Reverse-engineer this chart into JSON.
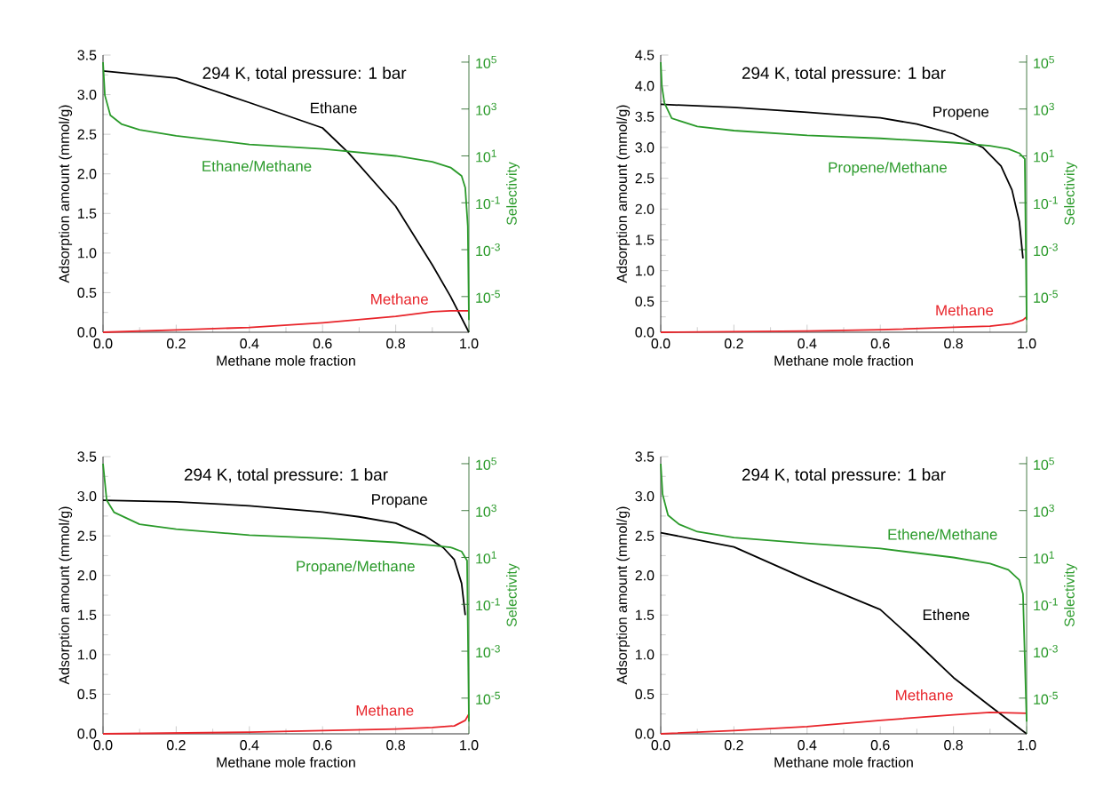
{
  "chart_data": [
    {
      "type": "line",
      "title": "294 K, total pressure: 1 bar",
      "xlabel": "Methane mole fraction",
      "ylabel": "Adsorption amount (mmol/g)",
      "y2label": "Selectivity",
      "log": "y2",
      "marker": "none",
      "line_style": "solid",
      "legend": false,
      "grid": false,
      "xlim": [
        0,
        1
      ],
      "xticks": [
        {
          "value": 0,
          "label": "0.0"
        },
        {
          "value": 0.2,
          "label": "0.2"
        },
        {
          "value": 0.4,
          "label": "0.4"
        },
        {
          "value": 0.6,
          "label": "0.6"
        },
        {
          "value": 0.8,
          "label": "0.8"
        },
        {
          "value": 1,
          "label": "1.0"
        }
      ],
      "ylim": [
        0,
        3.5
      ],
      "yticks": [
        {
          "value": 0,
          "label": "0.0"
        },
        {
          "value": 0.5,
          "label": "0.5"
        },
        {
          "value": 1,
          "label": "1.0"
        },
        {
          "value": 1.5,
          "label": "1.5"
        },
        {
          "value": 2,
          "label": "2.0"
        },
        {
          "value": 2.5,
          "label": "2.5"
        },
        {
          "value": 3,
          "label": "3.0"
        },
        {
          "value": 3.5,
          "label": "3.5"
        }
      ],
      "y2lim": [
        3e-07,
        200000
      ],
      "y2ticks": [
        {
          "value": 1e-05,
          "label": "10$^{-5}$"
        },
        {
          "value": 0.001,
          "label": "10$^{-3}$"
        },
        {
          "value": 0.1,
          "label": "10$^{-1}$"
        },
        {
          "value": 10,
          "label": "10$^{1}$"
        },
        {
          "value": 1000,
          "label": "10$^{3}$"
        },
        {
          "value": 100000,
          "label": "10$^{5}$"
        }
      ],
      "series": [
        {
          "name": "Ethane",
          "color": "#000000",
          "x": [
            0,
            0.2,
            0.4,
            0.6,
            0.67,
            0.8,
            0.9,
            0.95,
            1.0
          ],
          "values": [
            3.3,
            3.21,
            2.9,
            2.58,
            2.27,
            1.59,
            0.85,
            0.45,
            0.0
          ]
        },
        {
          "name": "Methane",
          "color": "#e8242a",
          "x": [
            0,
            0.2,
            0.4,
            0.6,
            0.8,
            0.9,
            0.95,
            1.0
          ],
          "values": [
            0,
            0.03,
            0.06,
            0.12,
            0.2,
            0.26,
            0.27,
            0.27
          ]
        },
        {
          "name": "Ethane/Methane",
          "color": "#2a9a2a",
          "axis": "y2",
          "x": [
            0,
            0.005,
            0.02,
            0.05,
            0.1,
            0.2,
            0.4,
            0.6,
            0.8,
            0.9,
            0.95,
            0.98,
            0.99,
            0.997,
            1.0
          ],
          "values": [
            100000,
            3900,
            540,
            230,
            130,
            72,
            31,
            20,
            10,
            5.6,
            3.2,
            1.4,
            0.44,
            0.01,
            1e-06
          ]
        }
      ]
    },
    {
      "type": "line",
      "title": "294 K, total pressure: 1 bar",
      "xlabel": "Methane mole fraction",
      "ylabel": "Adsorption amount (mmol/g)",
      "y2label": "Selectivity",
      "log": "y2",
      "marker": "none",
      "line_style": "solid",
      "legend": false,
      "grid": false,
      "xlim": [
        0,
        1
      ],
      "xticks": [
        {
          "value": 0,
          "label": "0.0"
        },
        {
          "value": 0.2,
          "label": "0.2"
        },
        {
          "value": 0.4,
          "label": "0.4"
        },
        {
          "value": 0.6,
          "label": "0.6"
        },
        {
          "value": 0.8,
          "label": "0.8"
        },
        {
          "value": 1,
          "label": "1.0"
        }
      ],
      "ylim": [
        0,
        4.5
      ],
      "yticks": [
        {
          "value": 0,
          "label": "0.0"
        },
        {
          "value": 0.5,
          "label": "0.5"
        },
        {
          "value": 1,
          "label": "1.0"
        },
        {
          "value": 1.5,
          "label": "1.5"
        },
        {
          "value": 2,
          "label": "2.0"
        },
        {
          "value": 2.5,
          "label": "2.5"
        },
        {
          "value": 3,
          "label": "3.0"
        },
        {
          "value": 3.5,
          "label": "3.5"
        },
        {
          "value": 4,
          "label": "4.0"
        },
        {
          "value": 4.5,
          "label": "4.5"
        }
      ],
      "y2lim": [
        3e-07,
        200000
      ],
      "y2ticks": [
        {
          "value": 1e-05,
          "label": "10$^{-5}$"
        },
        {
          "value": 0.001,
          "label": "10$^{-3}$"
        },
        {
          "value": 0.1,
          "label": "10$^{-1}$"
        },
        {
          "value": 10,
          "label": "10$^{1}$"
        },
        {
          "value": 1000,
          "label": "10$^{3}$"
        },
        {
          "value": 100000,
          "label": "10$^{5}$"
        }
      ],
      "series": [
        {
          "name": "Propene",
          "color": "#000000",
          "x": [
            0,
            0.2,
            0.4,
            0.6,
            0.7,
            0.8,
            0.88,
            0.93,
            0.96,
            0.98,
            0.99
          ],
          "values": [
            3.7,
            3.65,
            3.57,
            3.48,
            3.38,
            3.22,
            3.0,
            2.7,
            2.31,
            1.8,
            1.2
          ]
        },
        {
          "name": "Methane",
          "color": "#e8242a",
          "x": [
            0,
            0.4,
            0.6,
            0.8,
            0.9,
            0.96,
            0.99,
            1.0
          ],
          "values": [
            0,
            0.02,
            0.04,
            0.08,
            0.1,
            0.14,
            0.2,
            0.25
          ]
        },
        {
          "name": "Propene/Methane",
          "color": "#2a9a2a",
          "axis": "y2",
          "x": [
            0,
            0.003,
            0.01,
            0.03,
            0.1,
            0.2,
            0.4,
            0.6,
            0.8,
            0.9,
            0.95,
            0.98,
            0.995,
            1.0
          ],
          "values": [
            100000,
            10000,
            1800,
            400,
            180,
            120,
            75,
            56,
            37,
            27,
            20,
            13,
            7.5,
            1e-06
          ]
        }
      ]
    },
    {
      "type": "line",
      "title": "294 K, total pressure: 1 bar",
      "xlabel": "Methane mole fraction",
      "ylabel": "Adsorption amount (mmol/g)",
      "y2label": "Selectivity",
      "log": "y2",
      "marker": "none",
      "line_style": "solid",
      "legend": false,
      "grid": false,
      "xlim": [
        0,
        1
      ],
      "xticks": [
        {
          "value": 0,
          "label": "0.0"
        },
        {
          "value": 0.2,
          "label": "0.2"
        },
        {
          "value": 0.4,
          "label": "0.4"
        },
        {
          "value": 0.6,
          "label": "0.6"
        },
        {
          "value": 0.8,
          "label": "0.8"
        },
        {
          "value": 1,
          "label": "1.0"
        }
      ],
      "ylim": [
        0,
        3.5
      ],
      "yticks": [
        {
          "value": 0,
          "label": "0.0"
        },
        {
          "value": 0.5,
          "label": "0.5"
        },
        {
          "value": 1,
          "label": "1.0"
        },
        {
          "value": 1.5,
          "label": "1.5"
        },
        {
          "value": 2,
          "label": "2.0"
        },
        {
          "value": 2.5,
          "label": "2.5"
        },
        {
          "value": 3,
          "label": "3.0"
        },
        {
          "value": 3.5,
          "label": "3.5"
        }
      ],
      "y2lim": [
        3e-07,
        200000
      ],
      "y2ticks": [
        {
          "value": 1e-05,
          "label": "10$^{-5}$"
        },
        {
          "value": 0.001,
          "label": "10$^{-3}$"
        },
        {
          "value": 0.1,
          "label": "10$^{-1}$"
        },
        {
          "value": 10,
          "label": "10$^{1}$"
        },
        {
          "value": 1000,
          "label": "10$^{3}$"
        },
        {
          "value": 100000,
          "label": "10$^{5}$"
        }
      ],
      "series": [
        {
          "name": "Propane",
          "color": "#000000",
          "x": [
            0,
            0.2,
            0.4,
            0.6,
            0.7,
            0.8,
            0.88,
            0.93,
            0.96,
            0.98,
            0.99
          ],
          "values": [
            2.95,
            2.93,
            2.88,
            2.8,
            2.74,
            2.66,
            2.5,
            2.35,
            2.2,
            1.9,
            1.5
          ]
        },
        {
          "name": "Methane",
          "color": "#e8242a",
          "x": [
            0,
            0.4,
            0.8,
            0.9,
            0.96,
            0.99,
            1.0
          ],
          "values": [
            0,
            0.02,
            0.06,
            0.08,
            0.1,
            0.17,
            0.25
          ]
        },
        {
          "name": "Propane/Methane",
          "color": "#2a9a2a",
          "axis": "y2",
          "x": [
            0,
            0.005,
            0.01,
            0.03,
            0.1,
            0.2,
            0.4,
            0.6,
            0.8,
            0.9,
            0.95,
            0.98,
            0.995,
            1.0
          ],
          "values": [
            100000,
            17000,
            2800,
            850,
            260,
            160,
            90,
            66,
            44,
            33,
            27,
            18,
            7.4,
            1e-06
          ]
        }
      ]
    },
    {
      "type": "line",
      "title": "294 K, total pressure: 1 bar",
      "xlabel": "Methane mole fraction",
      "ylabel": "Adsorption amount (mmol/g)",
      "y2label": "Selectivity",
      "log": "y2",
      "marker": "none",
      "line_style": "solid",
      "legend": false,
      "grid": false,
      "xlim": [
        0,
        1
      ],
      "xticks": [
        {
          "value": 0,
          "label": "0.0"
        },
        {
          "value": 0.2,
          "label": "0.2"
        },
        {
          "value": 0.4,
          "label": "0.4"
        },
        {
          "value": 0.6,
          "label": "0.6"
        },
        {
          "value": 0.8,
          "label": "0.8"
        },
        {
          "value": 1,
          "label": "1.0"
        }
      ],
      "ylim": [
        0,
        3.5
      ],
      "yticks": [
        {
          "value": 0,
          "label": "0.0"
        },
        {
          "value": 0.5,
          "label": "0.5"
        },
        {
          "value": 1,
          "label": "1.0"
        },
        {
          "value": 1.5,
          "label": "1.5"
        },
        {
          "value": 2,
          "label": "2.0"
        },
        {
          "value": 2.5,
          "label": "2.5"
        },
        {
          "value": 3,
          "label": "3.0"
        },
        {
          "value": 3.5,
          "label": "3.5"
        }
      ],
      "y2lim": [
        3e-07,
        200000
      ],
      "y2ticks": [
        {
          "value": 1e-05,
          "label": "10$^{-5}$"
        },
        {
          "value": 0.001,
          "label": "10$^{-3}$"
        },
        {
          "value": 0.1,
          "label": "10$^{-1}$"
        },
        {
          "value": 10,
          "label": "10$^{1}$"
        },
        {
          "value": 1000,
          "label": "10$^{3}$"
        },
        {
          "value": 100000,
          "label": "10$^{5}$"
        }
      ],
      "series": [
        {
          "name": "Ethene",
          "color": "#000000",
          "x": [
            0,
            0.2,
            0.4,
            0.6,
            0.7,
            0.8,
            0.9,
            1.0
          ],
          "values": [
            2.54,
            2.36,
            1.95,
            1.57,
            1.15,
            0.71,
            0.35,
            0.0
          ]
        },
        {
          "name": "Methane",
          "color": "#e8242a",
          "x": [
            0,
            0.2,
            0.4,
            0.6,
            0.8,
            0.9,
            1.0
          ],
          "values": [
            0,
            0.04,
            0.09,
            0.17,
            0.24,
            0.27,
            0.26
          ]
        },
        {
          "name": "Ethene/Methane",
          "color": "#2a9a2a",
          "axis": "y2",
          "x": [
            0,
            0.005,
            0.02,
            0.05,
            0.1,
            0.2,
            0.4,
            0.6,
            0.8,
            0.9,
            0.95,
            0.98,
            0.99,
            1.0
          ],
          "values": [
            100000,
            5000,
            630,
            260,
            126,
            70,
            40,
            24,
            10,
            5.5,
            3,
            1.1,
            0.28,
            1e-06
          ]
        }
      ]
    }
  ]
}
